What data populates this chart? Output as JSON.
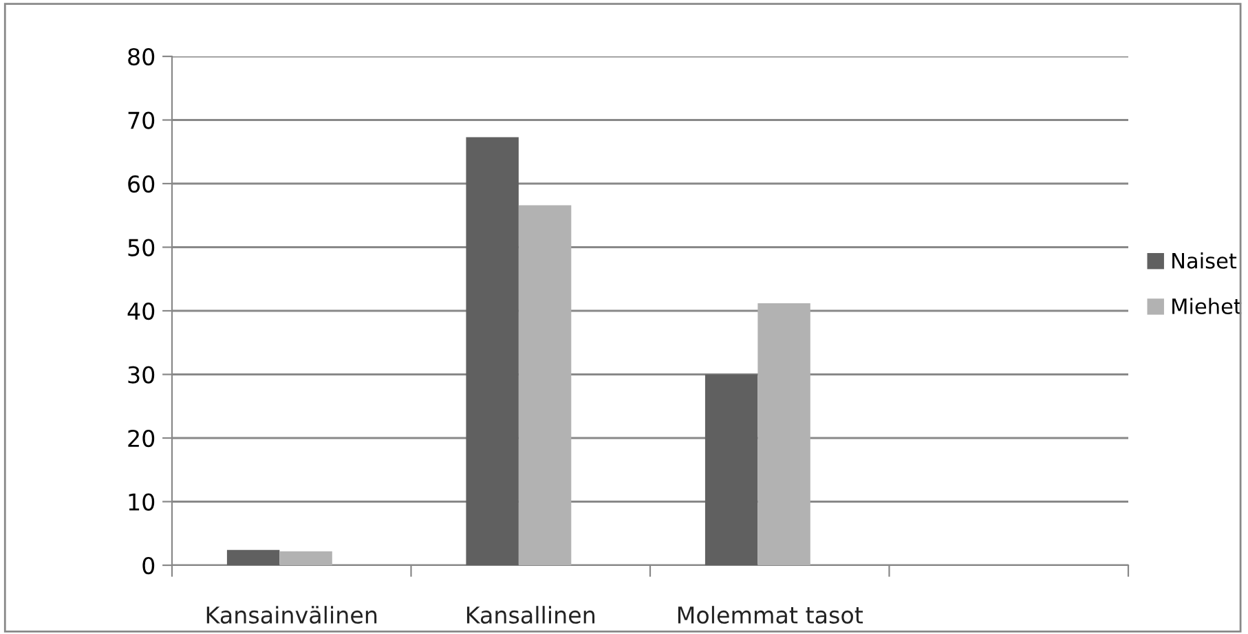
{
  "chart_data": {
    "type": "bar",
    "categories": [
      "Kansainvälinen",
      "Kansallinen",
      "Molemmat tasot",
      null
    ],
    "series": [
      {
        "name": "Naiset",
        "color": "#606060",
        "values": [
          2.4,
          67.3,
          30,
          null
        ]
      },
      {
        "name": "Miehet",
        "color": "#b2b2b2",
        "values": [
          2.2,
          56.6,
          41.2,
          null
        ]
      }
    ],
    "ylim": [
      0,
      80
    ],
    "yticks": [
      0,
      10,
      20,
      30,
      40,
      50,
      60,
      70,
      80
    ],
    "grid": "y",
    "legend": "right"
  }
}
